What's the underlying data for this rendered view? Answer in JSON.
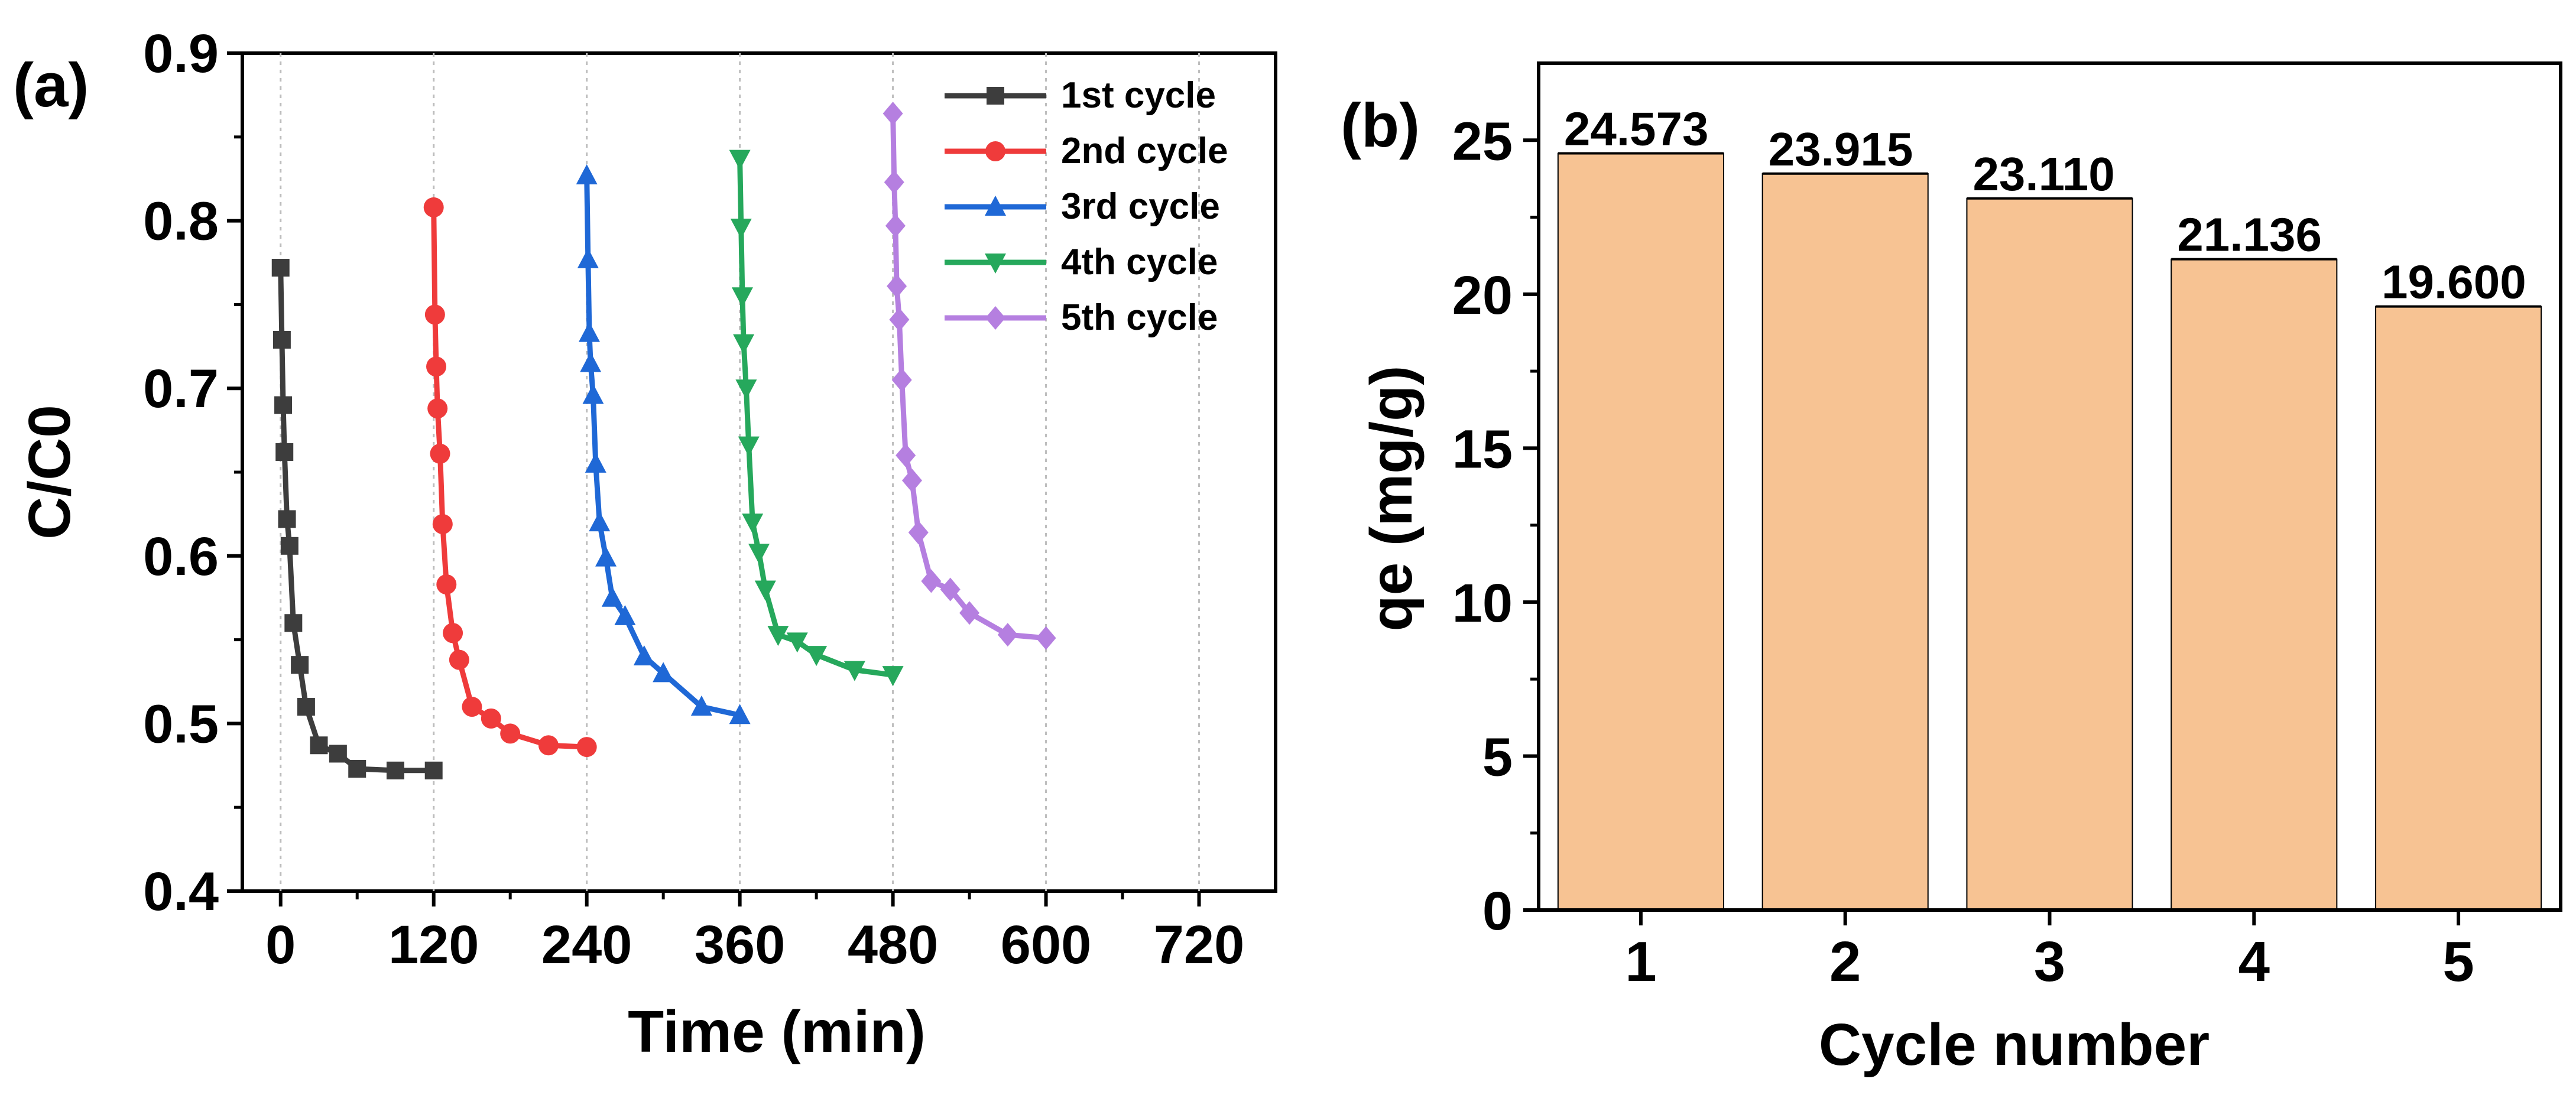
{
  "chart_data": [
    {
      "panel_label": "(a)",
      "type": "line",
      "xlabel": "Time (min)",
      "ylabel": "C/C0",
      "xlim": [
        -30,
        780
      ],
      "ylim": [
        0.4,
        0.9
      ],
      "xticks": [
        0,
        120,
        240,
        360,
        480,
        600,
        720
      ],
      "yticks": [
        0.4,
        0.5,
        0.6,
        0.7,
        0.8,
        0.9
      ],
      "grid": "vertical dotted at x ticks",
      "legend_position": "top-right",
      "series": [
        {
          "name": "1st cycle",
          "marker": "square",
          "color": "#3d3d3d",
          "x": [
            0,
            1,
            2,
            3,
            5,
            7,
            10,
            15,
            20,
            30,
            45,
            60,
            90,
            120
          ],
          "y": [
            0.772,
            0.729,
            0.69,
            0.662,
            0.622,
            0.606,
            0.56,
            0.535,
            0.51,
            0.487,
            0.482,
            0.473,
            0.472,
            0.472
          ]
        },
        {
          "name": "2nd cycle",
          "marker": "circle",
          "color": "#ef3b3b",
          "x": [
            120,
            121,
            122,
            123,
            125,
            127,
            130,
            135,
            140,
            150,
            165,
            180,
            210,
            240
          ],
          "y": [
            0.808,
            0.744,
            0.713,
            0.688,
            0.661,
            0.619,
            0.583,
            0.554,
            0.538,
            0.51,
            0.503,
            0.494,
            0.487,
            0.486
          ]
        },
        {
          "name": "3rd cycle",
          "marker": "triangle-up",
          "color": "#1f68d6",
          "x": [
            240,
            241,
            242,
            243,
            245,
            247,
            250,
            255,
            260,
            270,
            285,
            300,
            330,
            360
          ],
          "y": [
            0.827,
            0.777,
            0.733,
            0.715,
            0.696,
            0.655,
            0.62,
            0.599,
            0.575,
            0.564,
            0.54,
            0.53,
            0.51,
            0.505
          ]
        },
        {
          "name": "4th cycle",
          "marker": "triangle-down",
          "color": "#26a85c",
          "x": [
            360,
            361,
            362,
            363,
            365,
            367,
            370,
            375,
            380,
            390,
            405,
            420,
            450,
            480
          ],
          "y": [
            0.837,
            0.796,
            0.755,
            0.727,
            0.7,
            0.666,
            0.62,
            0.602,
            0.58,
            0.553,
            0.549,
            0.541,
            0.532,
            0.529
          ]
        },
        {
          "name": "5th cycle",
          "marker": "diamond",
          "color": "#b57fe0",
          "x": [
            480,
            481,
            482,
            483,
            485,
            487,
            490,
            495,
            500,
            510,
            525,
            540,
            570,
            600
          ],
          "y": [
            0.864,
            0.823,
            0.797,
            0.761,
            0.741,
            0.705,
            0.66,
            0.645,
            0.614,
            0.585,
            0.58,
            0.566,
            0.553,
            0.551
          ]
        }
      ]
    },
    {
      "panel_label": "(b)",
      "type": "bar",
      "xlabel": "Cycle number",
      "ylabel": "qe (mg/g)",
      "categories": [
        "1",
        "2",
        "3",
        "4",
        "5"
      ],
      "values": [
        24.573,
        23.915,
        23.11,
        21.136,
        19.6
      ],
      "data_labels": [
        "24.573",
        "23.915",
        "23.110",
        "21.136",
        "19.600"
      ],
      "ylim": [
        0,
        27.5
      ],
      "yticks": [
        0,
        5,
        10,
        15,
        20,
        25
      ],
      "bar_color": "#f7c393",
      "grid": "off"
    }
  ]
}
